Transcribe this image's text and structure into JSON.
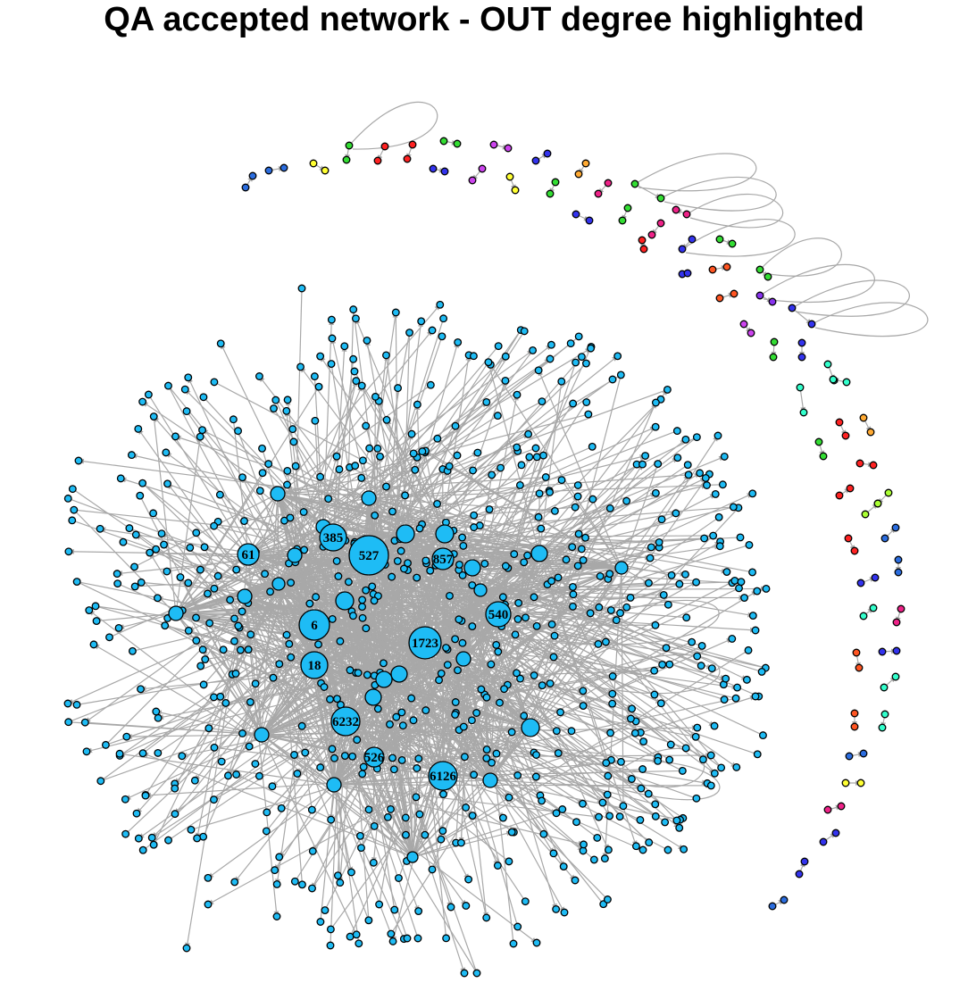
{
  "title": "QA accepted network - OUT degree highlighted",
  "colors": {
    "main_component": "#1ebcf5",
    "edge": "#a8a8a8",
    "node_stroke": "#000000"
  },
  "hub_labels": [
    "527",
    "385",
    "61",
    "857",
    "540",
    "6",
    "1723",
    "18",
    "6232",
    "526",
    "6126"
  ],
  "side_pair_colors": [
    "#2b6ddf",
    "#ffff33",
    "#33dd33",
    "#ff2222",
    "#cc44ee",
    "#3333ee",
    "#ee2288",
    "#ffaa33",
    "#ff5522",
    "#33ffcc",
    "#8833ee",
    "#aaff33"
  ]
}
